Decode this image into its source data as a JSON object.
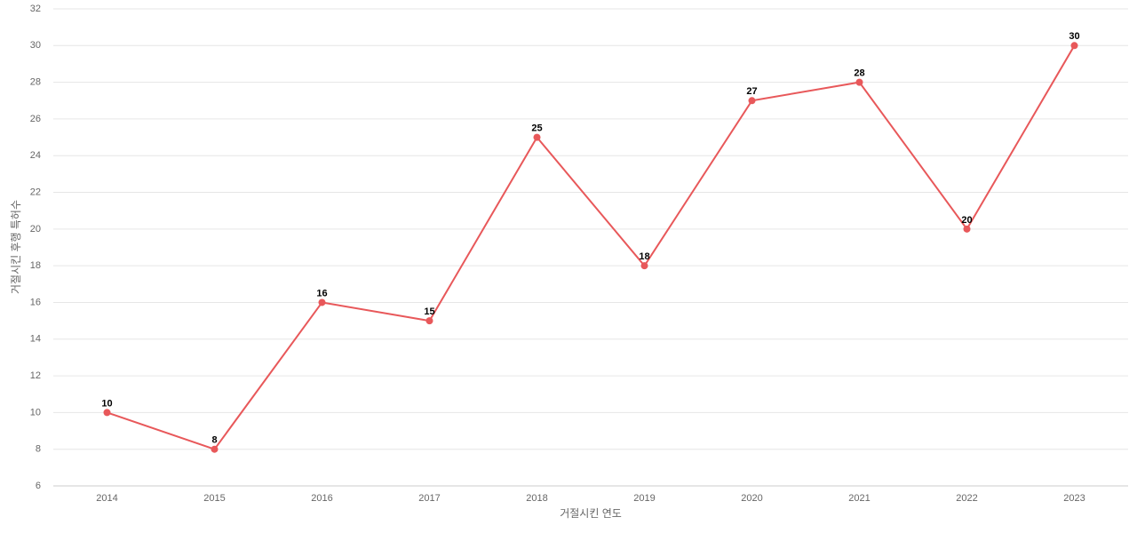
{
  "chart_data": {
    "type": "line",
    "x_label": "거절시킨 연도",
    "y_label": "거절시킨 후행 특허수",
    "categories": [
      "2014",
      "2015",
      "2016",
      "2017",
      "2018",
      "2019",
      "2020",
      "2021",
      "2022",
      "2023"
    ],
    "series": [
      {
        "name": "거절시킨 후행 특허수",
        "color": "#e8585a",
        "values": [
          10,
          8,
          16,
          15,
          25,
          18,
          27,
          28,
          20,
          30
        ]
      }
    ],
    "ylim": [
      6,
      32
    ],
    "yticks": [
      6,
      8,
      10,
      12,
      14,
      16,
      18,
      20,
      22,
      24,
      26,
      28,
      30,
      32
    ],
    "grid": true
  }
}
